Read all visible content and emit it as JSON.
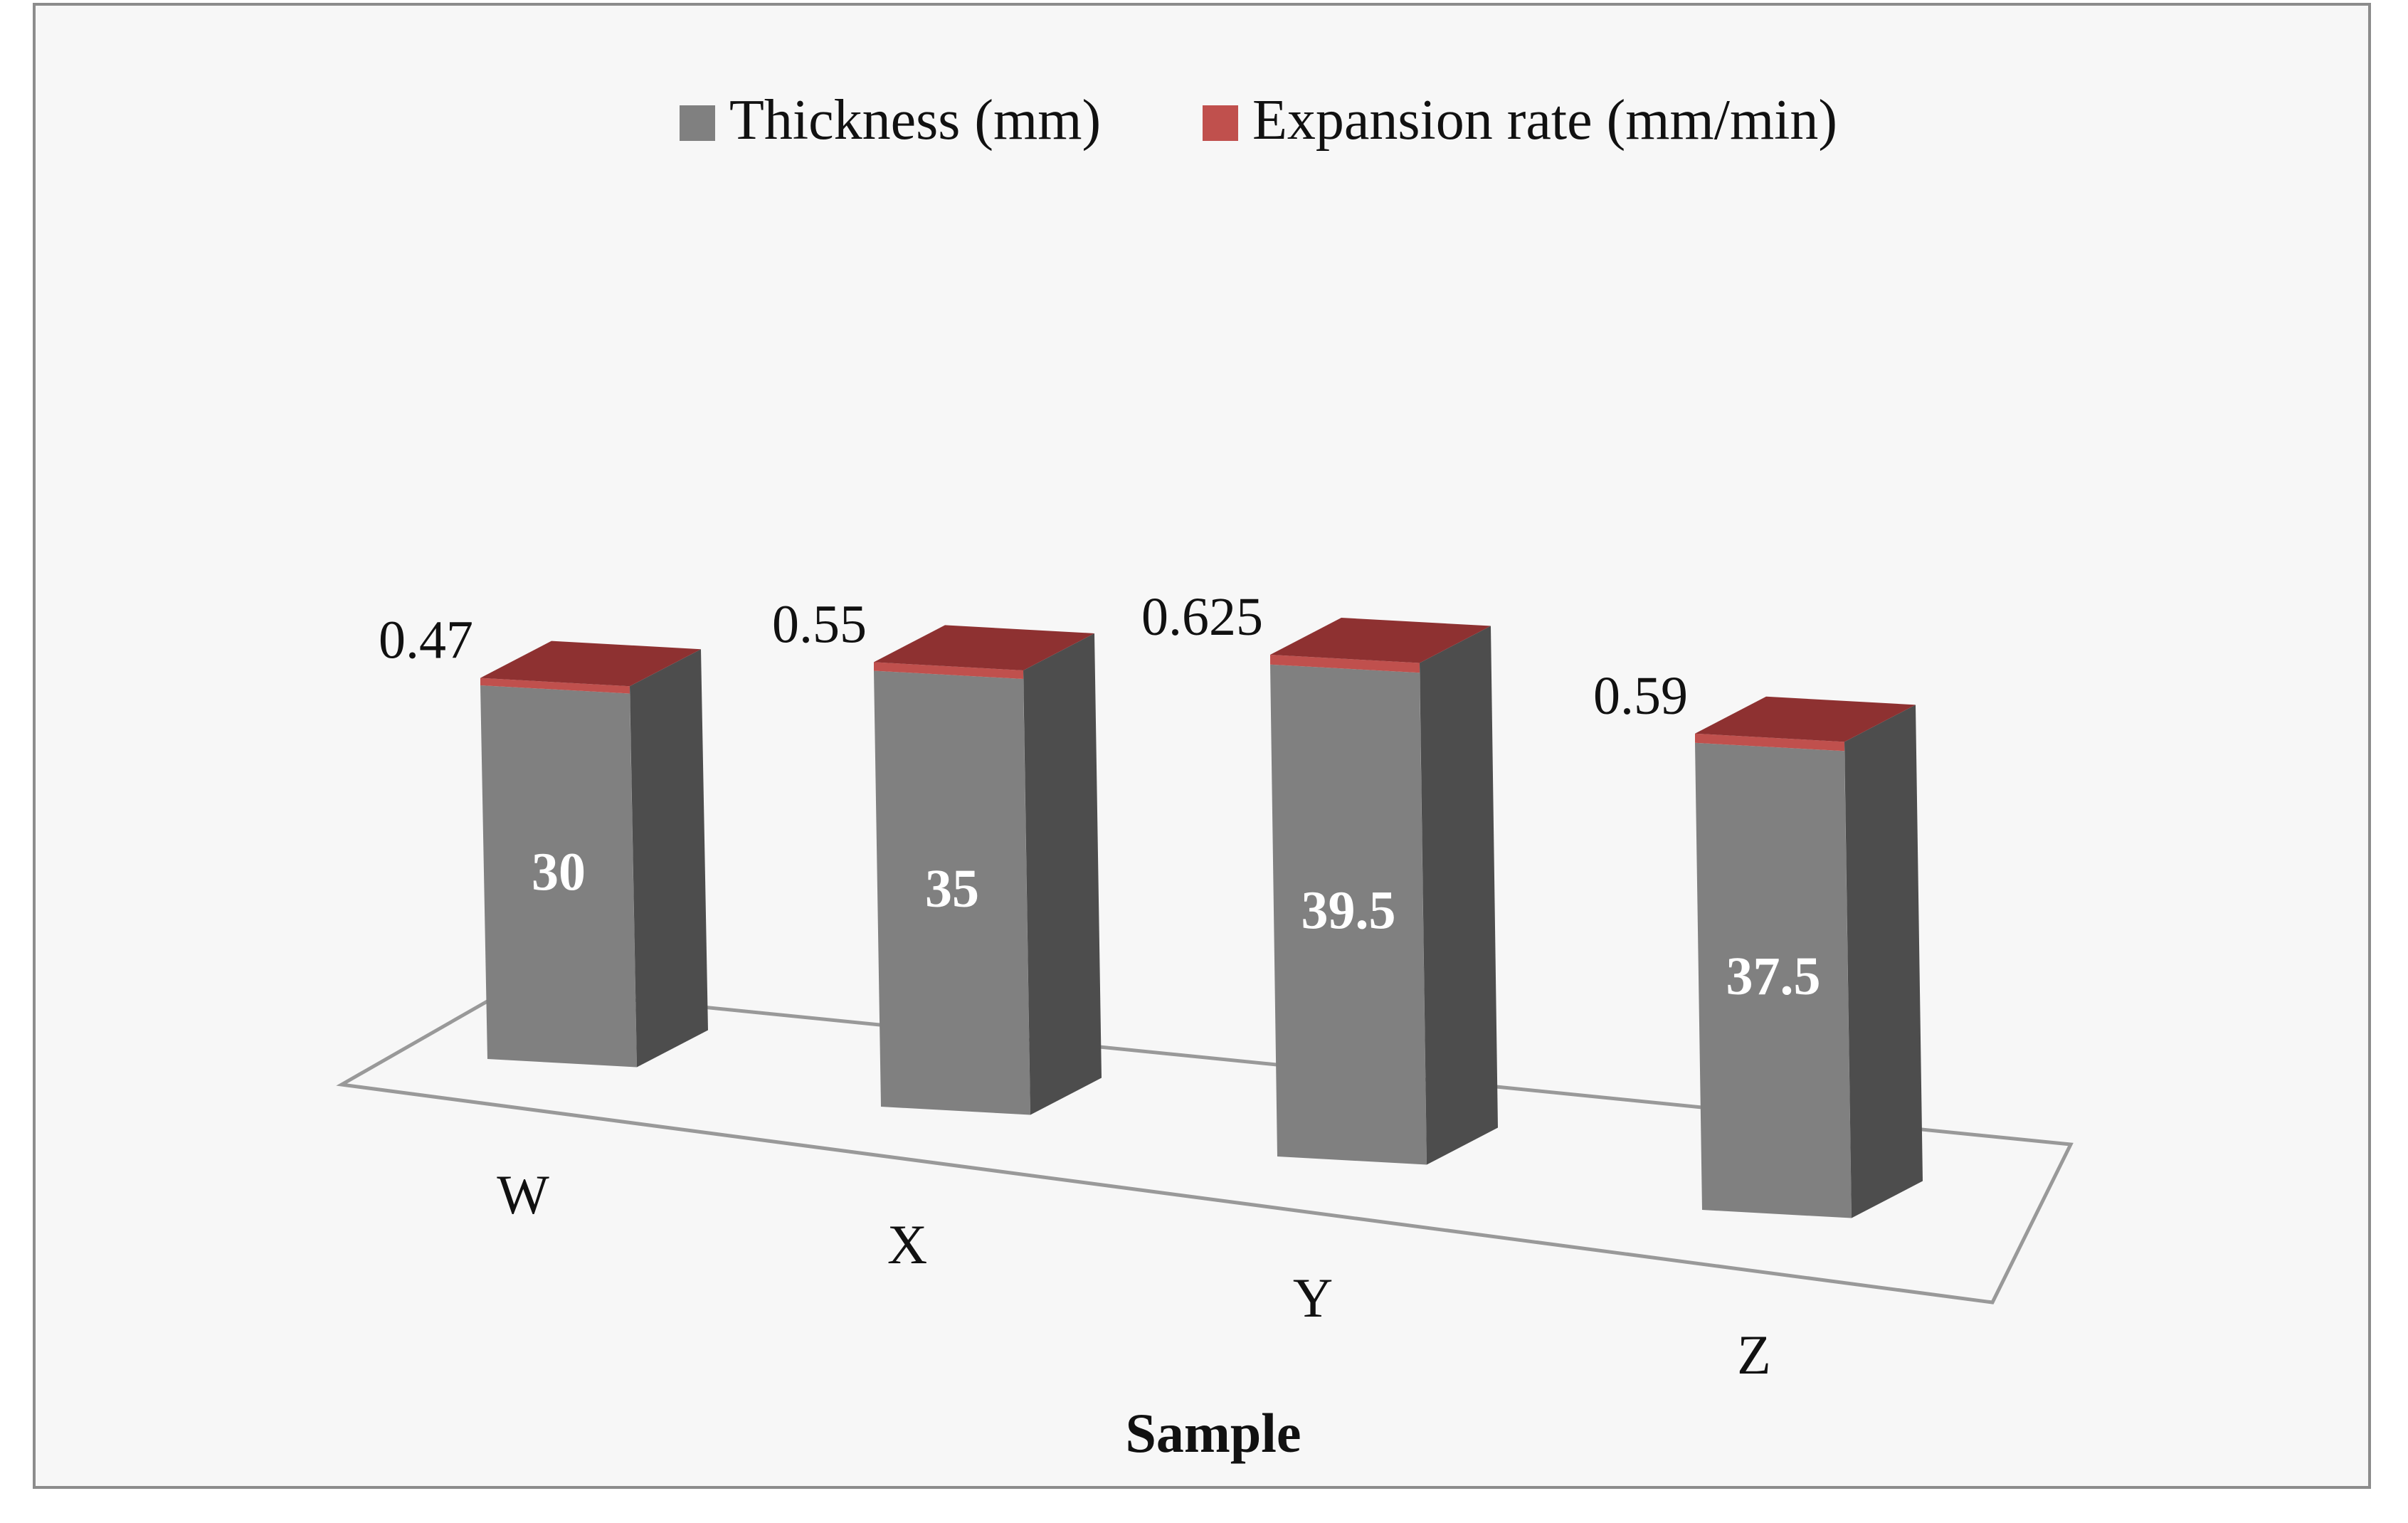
{
  "chart_data": {
    "type": "bar",
    "title": "",
    "xlabel": "Sample",
    "ylabel": "",
    "categories": [
      "W",
      "X",
      "Y",
      "Z"
    ],
    "series": [
      {
        "name": "Thickness (mm)",
        "values": [
          30,
          35,
          39.5,
          37.5
        ],
        "labels": [
          "30",
          "35",
          "39.5",
          "37.5"
        ],
        "color": "#808080"
      },
      {
        "name": "Expansion rate (mm/min)",
        "values": [
          0.47,
          0.55,
          0.625,
          0.59
        ],
        "labels": [
          "0.47",
          "0.55",
          "0.625",
          "0.59"
        ],
        "color": "#c0504d"
      }
    ],
    "stacked": true,
    "three_d": true,
    "grid": false,
    "legend_position": "top"
  },
  "colors": {
    "background": "#f7f7f7",
    "border": "#8c8c8c",
    "bar_front": "#808080",
    "bar_side": "#4d4d4d",
    "bar_top": "#6e6e6e",
    "cap_front": "#c0504d",
    "cap_top": "#8e3131",
    "floor_line": "#999999"
  }
}
